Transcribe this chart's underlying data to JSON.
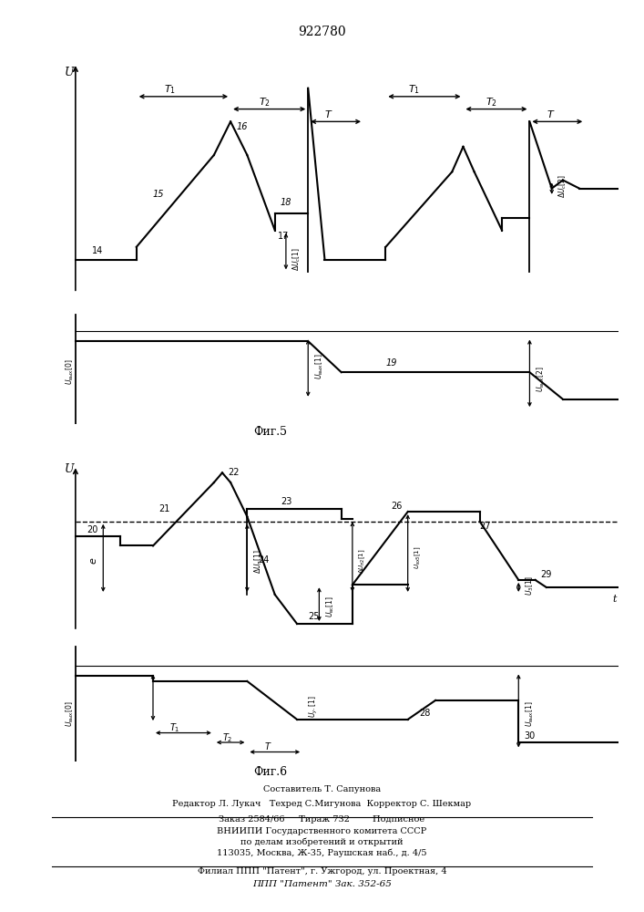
{
  "title": "922780",
  "fig5_label": "Фиг.5",
  "fig6_label": "Фиг.6",
  "footer_lines": [
    "Составитель Т. Сапунова",
    "Редактор Л. Лукач   Техред С.Мигунова  Корректор С. Шекмар",
    "Заказ 2584/66     Тираж 732        Подписное",
    "ВНИИПИ Государственного комитета СССР",
    "по делам изобретений и открытий",
    "113035, Москва, Ж-35, Раушская наб., д. 4/5",
    "Филиал ППП \"Патент\", г. Ужгород, ул. Проектная, 4",
    "ППП \"Патент\" Зак. 352-65"
  ],
  "background_color": "#ffffff",
  "line_color": "#000000"
}
